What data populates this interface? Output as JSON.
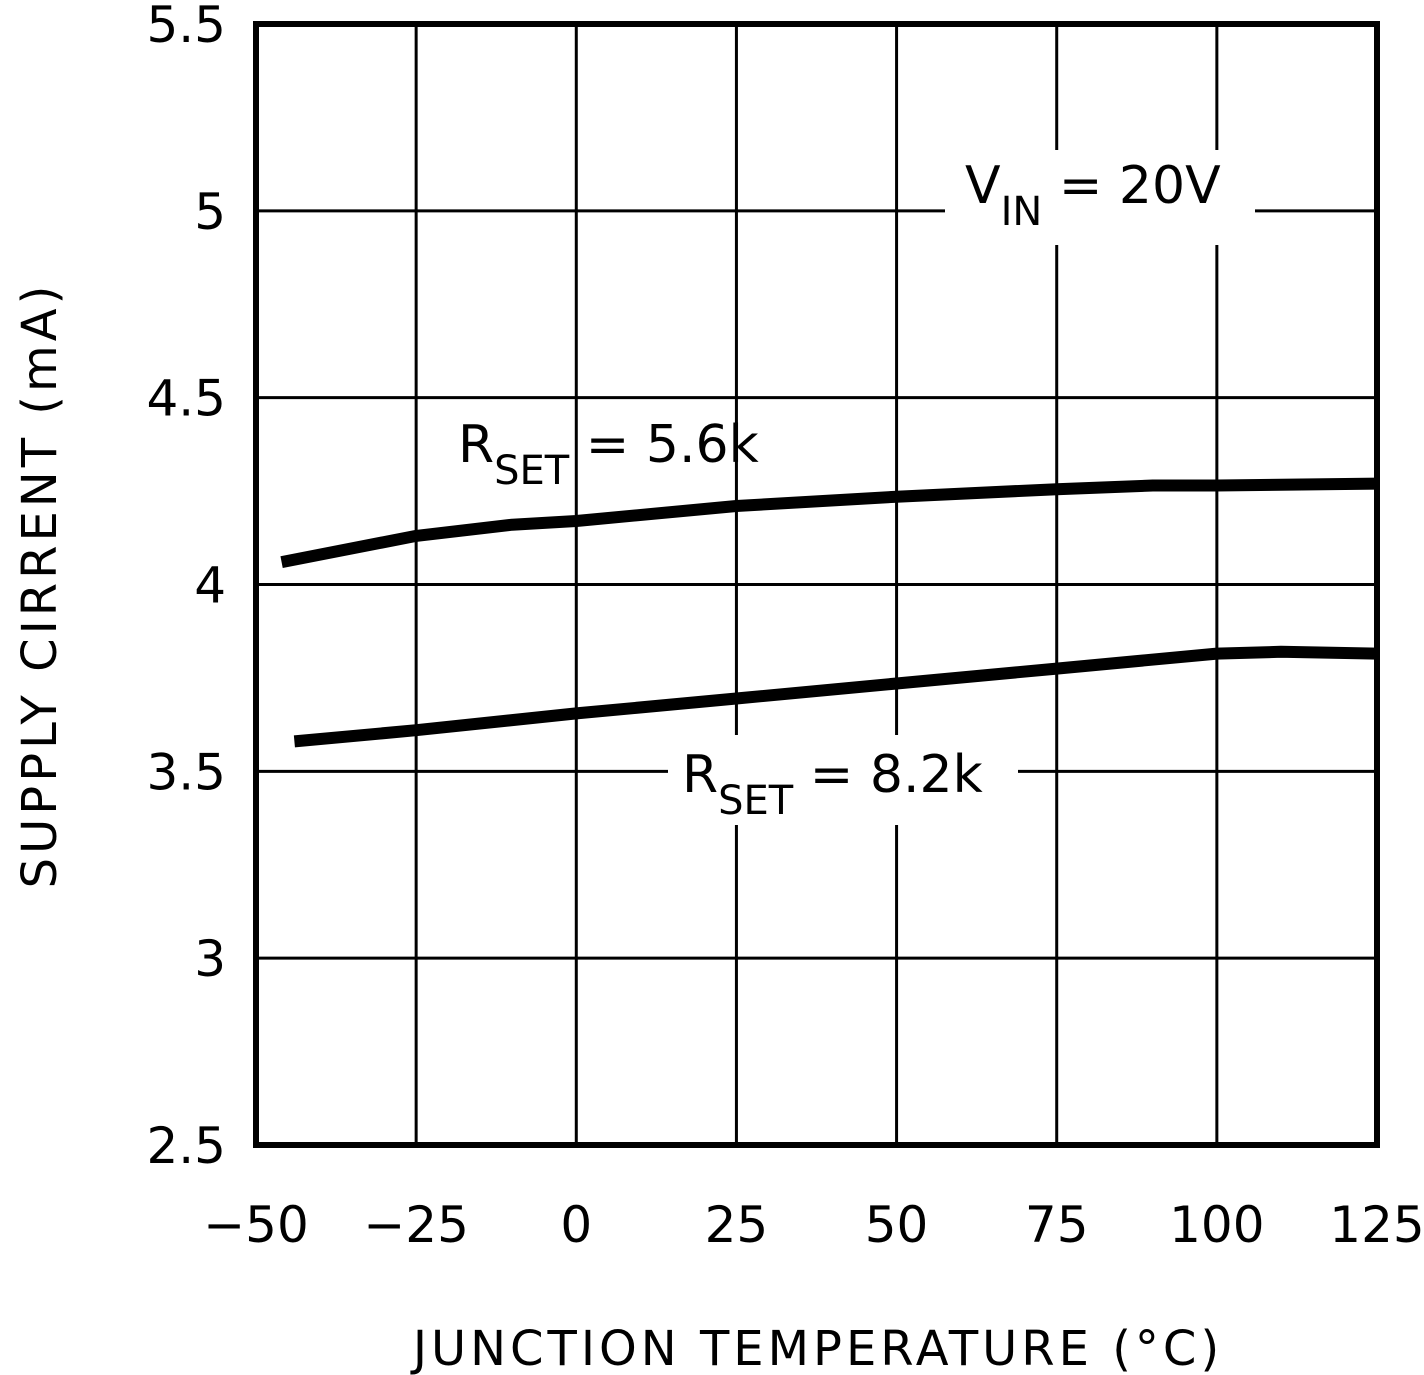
{
  "chart_data": {
    "type": "line",
    "xlabel": "JUNCTION TEMPERATURE (°C)",
    "ylabel": "SUPPLY CIRRENT (mA)",
    "xlim": [
      -50,
      125
    ],
    "ylim": [
      2.5,
      5.5
    ],
    "x_ticks": [
      "−50",
      "−25",
      "0",
      "25",
      "50",
      "75",
      "100",
      "125"
    ],
    "y_ticks": [
      "2.5",
      "3",
      "3.5",
      "4",
      "4.5",
      "5",
      "5.5"
    ],
    "grid": true,
    "series": [
      {
        "name": "RSET = 5.6k",
        "x": [
          -46,
          -25,
          -10,
          0,
          25,
          50,
          75,
          90,
          100,
          125
        ],
        "y": [
          4.06,
          4.13,
          4.16,
          4.17,
          4.21,
          4.235,
          4.255,
          4.265,
          4.265,
          4.27
        ]
      },
      {
        "name": "RSET = 8.2k",
        "x": [
          -44,
          -25,
          0,
          25,
          50,
          75,
          100,
          110,
          125
        ],
        "y": [
          3.58,
          3.61,
          3.655,
          3.695,
          3.735,
          3.775,
          3.815,
          3.82,
          3.815
        ]
      }
    ],
    "annotations": {
      "vin": {
        "main": "V",
        "sub": "IN",
        "rest": " = 20V"
      },
      "rset1": {
        "main": "R",
        "sub": "SET",
        "rest": " = 5.6k"
      },
      "rset2": {
        "main": "R",
        "sub": "SET",
        "rest": " = 8.2k"
      }
    }
  }
}
